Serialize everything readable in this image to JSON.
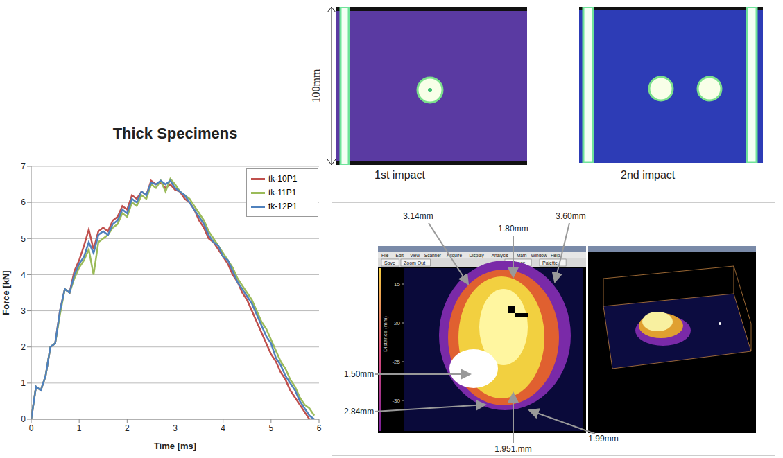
{
  "chart_data": {
    "type": "line",
    "title": "Thick Specimens",
    "x_label": "Time [ms]",
    "y_label": "Force [kN]",
    "x": [
      0,
      0.1,
      0.2,
      0.3,
      0.4,
      0.5,
      0.6,
      0.7,
      0.8,
      0.9,
      1.0,
      1.1,
      1.2,
      1.3,
      1.4,
      1.5,
      1.6,
      1.7,
      1.8,
      1.9,
      2.0,
      2.1,
      2.2,
      2.3,
      2.4,
      2.5,
      2.6,
      2.7,
      2.8,
      2.9,
      3.0,
      3.1,
      3.2,
      3.3,
      3.4,
      3.5,
      3.6,
      3.7,
      3.8,
      3.9,
      4.0,
      4.1,
      4.2,
      4.3,
      4.4,
      4.5,
      4.6,
      4.7,
      4.8,
      4.9,
      5.0,
      5.1,
      5.2,
      5.3,
      5.4,
      5.5,
      5.6,
      5.7,
      5.8,
      5.9
    ],
    "series": [
      {
        "name": "tk-10P1",
        "color": "#c0504d",
        "values": [
          0,
          0.9,
          0.8,
          1.2,
          2.0,
          2.1,
          3.0,
          3.6,
          3.5,
          4.1,
          4.4,
          4.8,
          5.25,
          4.7,
          5.2,
          5.3,
          5.2,
          5.5,
          5.6,
          5.9,
          5.8,
          6.2,
          6.1,
          6.3,
          6.2,
          6.6,
          6.5,
          6.55,
          6.4,
          6.5,
          6.35,
          6.3,
          6.1,
          6.0,
          5.8,
          5.5,
          5.3,
          5.0,
          4.9,
          4.7,
          4.5,
          4.3,
          4.0,
          3.8,
          3.5,
          3.3,
          3.0,
          2.7,
          2.4,
          2.1,
          1.8,
          1.6,
          1.3,
          1.1,
          0.8,
          0.6,
          0.4,
          0.2,
          0,
          0
        ]
      },
      {
        "name": "tk-11P1",
        "color": "#9bbb59",
        "values": [
          0,
          0.9,
          0.8,
          1.2,
          2.0,
          2.1,
          2.9,
          3.6,
          3.5,
          3.9,
          4.2,
          4.4,
          4.7,
          4.0,
          4.9,
          5.0,
          5.1,
          5.3,
          5.4,
          5.7,
          5.6,
          6.0,
          5.9,
          6.2,
          6.1,
          6.5,
          6.4,
          6.6,
          6.3,
          6.65,
          6.5,
          6.3,
          6.2,
          6.1,
          5.9,
          5.7,
          5.5,
          5.2,
          5.0,
          4.8,
          4.6,
          4.4,
          4.2,
          3.9,
          3.7,
          3.5,
          3.3,
          3.0,
          2.7,
          2.5,
          2.2,
          1.9,
          1.6,
          1.4,
          1.1,
          0.9,
          0.6,
          0.4,
          0.3,
          0.1
        ]
      },
      {
        "name": "tk-12P1",
        "color": "#4f81bd",
        "values": [
          0,
          0.9,
          0.8,
          1.2,
          2.0,
          2.1,
          3.0,
          3.6,
          3.5,
          4.0,
          4.3,
          4.5,
          4.9,
          4.6,
          5.1,
          5.2,
          5.1,
          5.4,
          5.5,
          5.8,
          5.7,
          6.1,
          6.0,
          6.3,
          6.2,
          6.55,
          6.5,
          6.6,
          6.5,
          6.6,
          6.4,
          6.3,
          6.2,
          6.0,
          5.8,
          5.6,
          5.4,
          5.1,
          4.9,
          4.8,
          4.5,
          4.4,
          4.1,
          3.8,
          3.6,
          3.4,
          3.2,
          2.9,
          2.6,
          2.3,
          2.1,
          1.7,
          1.5,
          1.2,
          1.0,
          0.8,
          0.5,
          0.3,
          0.1,
          0
        ]
      }
    ],
    "xlim": [
      0,
      6
    ],
    "xticks": [
      0,
      1,
      2,
      3,
      4,
      5,
      6
    ],
    "ylim": [
      0,
      7
    ],
    "yticks": [
      0,
      1,
      2,
      3,
      4,
      5,
      6,
      7
    ],
    "grid": true,
    "legend": "upper right"
  },
  "scale_bar": {
    "label": "100mm"
  },
  "images": [
    {
      "caption": "1st impact"
    },
    {
      "caption": "2nd impact"
    }
  ],
  "screenshot": {
    "menu": [
      "File",
      "Edit",
      "View",
      "Scanner",
      "Acquire",
      "Display",
      "Analysis",
      "Math",
      "Window",
      "Help"
    ],
    "buttons": [
      "Save",
      "Zoom Out",
      "Balance",
      "Palette"
    ],
    "y_label": "Distance (mm)",
    "y_ticks": [
      -15,
      -20,
      -25,
      -30
    ],
    "annotations": [
      {
        "label": "3.14mm"
      },
      {
        "label": "1.80mm"
      },
      {
        "label": "3.60mm"
      },
      {
        "label": "1.50mm"
      },
      {
        "label": "2.84mm"
      },
      {
        "label": "1.951.mm"
      },
      {
        "label": "1.99mm"
      }
    ]
  }
}
